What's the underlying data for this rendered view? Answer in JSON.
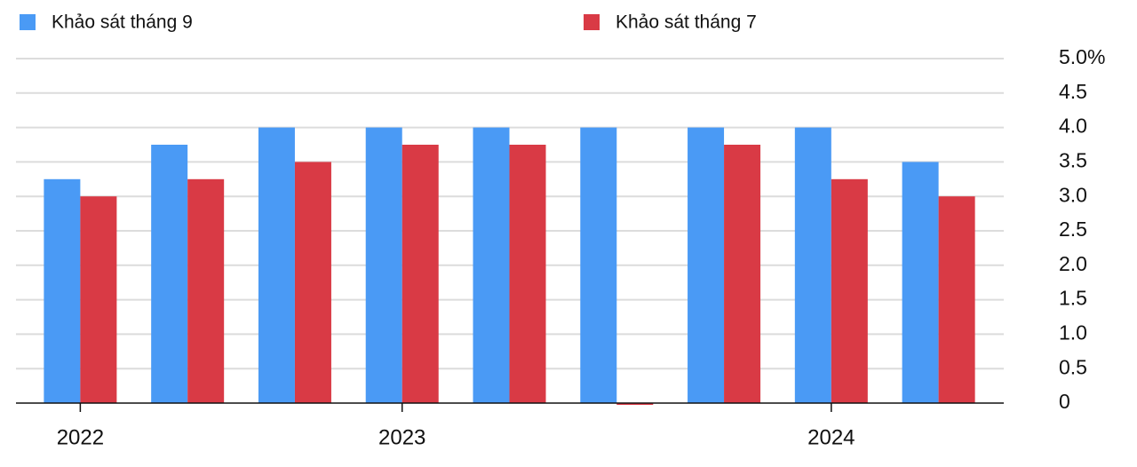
{
  "chart_data": {
    "type": "bar",
    "categories": [
      "2022",
      null,
      null,
      "2023",
      null,
      null,
      null,
      "2024",
      null
    ],
    "series": [
      {
        "name": "Khảo sát tháng 9",
        "color": "#4a9af5",
        "values": [
          3.25,
          3.75,
          4.0,
          4.0,
          4.0,
          4.0,
          4.0,
          4.0,
          3.5
        ]
      },
      {
        "name": "Khảo sát tháng 7",
        "color": "#d93a45",
        "values": [
          3.0,
          3.25,
          3.5,
          3.75,
          3.75,
          0,
          3.75,
          3.25,
          3.0
        ]
      }
    ],
    "ylim": [
      0,
      5
    ],
    "yticks": [
      0,
      0.5,
      {
        "value": 1,
        "label": "1.0"
      },
      1.5,
      {
        "value": 2,
        "label": "2.0"
      },
      2.5,
      {
        "value": 3,
        "label": "3.0"
      },
      3.5,
      {
        "value": 4,
        "label": "4.0"
      },
      4.5,
      {
        "value": 5,
        "label": "5.0%"
      }
    ],
    "grid": true
  }
}
